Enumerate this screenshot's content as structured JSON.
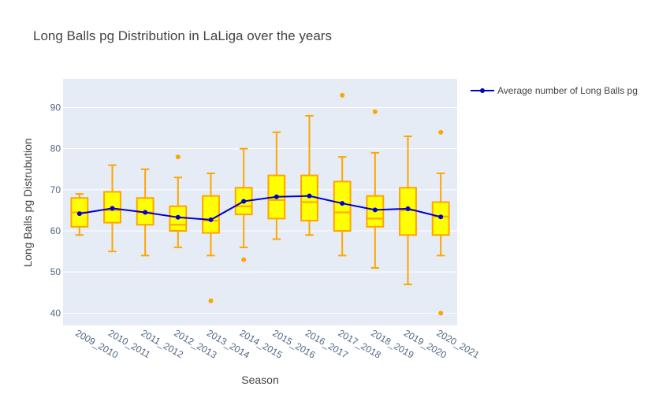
{
  "chart_data": {
    "type": "box",
    "title": "Long Balls pg Distribution in LaLiga over the years",
    "xlabel": "Season",
    "ylabel": "Long Balls pg Distrubution",
    "ylim": [
      37,
      97
    ],
    "yticks": [
      40,
      50,
      60,
      70,
      80,
      90
    ],
    "grid": true,
    "legend_position": "top-right",
    "colors": {
      "plot_bg": "#e5ecf6",
      "box_fill": "#ffff00",
      "box_line": "#ffa500",
      "outlier": "#ffa500",
      "mean_line": "#0000cd"
    },
    "categories": [
      "2009_2010",
      "2010_2011",
      "2011_2012",
      "2012_2013",
      "2013_2014",
      "2014_2015",
      "2015_2016",
      "2016_2017",
      "2017_2018",
      "2018_2019",
      "2019_2020",
      "2020_2021"
    ],
    "boxes": [
      {
        "min": 59,
        "q1": 61,
        "median": 64.5,
        "q3": 68,
        "max": 69,
        "outliers": []
      },
      {
        "min": 55,
        "q1": 62,
        "median": 65,
        "q3": 69.5,
        "max": 76,
        "outliers": []
      },
      {
        "min": 54,
        "q1": 61.5,
        "median": 64.5,
        "q3": 68,
        "max": 75,
        "outliers": []
      },
      {
        "min": 56,
        "q1": 60,
        "median": 61.5,
        "q3": 66,
        "max": 73,
        "outliers": [
          78
        ]
      },
      {
        "min": 54,
        "q1": 59.5,
        "median": 62.5,
        "q3": 68.5,
        "max": 74,
        "outliers": [
          43
        ]
      },
      {
        "min": 56,
        "q1": 64,
        "median": 66,
        "q3": 70.5,
        "max": 80,
        "outliers": [
          53
        ]
      },
      {
        "min": 58,
        "q1": 63,
        "median": 67.5,
        "q3": 73.5,
        "max": 84,
        "outliers": []
      },
      {
        "min": 59,
        "q1": 62.5,
        "median": 67,
        "q3": 73.5,
        "max": 88,
        "outliers": []
      },
      {
        "min": 54,
        "q1": 60,
        "median": 64.5,
        "q3": 72,
        "max": 78,
        "outliers": [
          93
        ]
      },
      {
        "min": 51,
        "q1": 61,
        "median": 63,
        "q3": 68.5,
        "max": 79,
        "outliers": [
          89
        ]
      },
      {
        "min": 47,
        "q1": 59,
        "median": 65,
        "q3": 70.5,
        "max": 83,
        "outliers": []
      },
      {
        "min": 54,
        "q1": 59,
        "median": 63.5,
        "q3": 67,
        "max": 74,
        "outliers": [
          84,
          40
        ]
      }
    ],
    "series": [
      {
        "name": "Average number of Long Balls pg",
        "type": "line",
        "values": [
          64.2,
          65.5,
          64.5,
          63.3,
          62.7,
          67.2,
          68.3,
          68.5,
          66.7,
          65.1,
          65.4,
          63.4
        ]
      }
    ]
  }
}
